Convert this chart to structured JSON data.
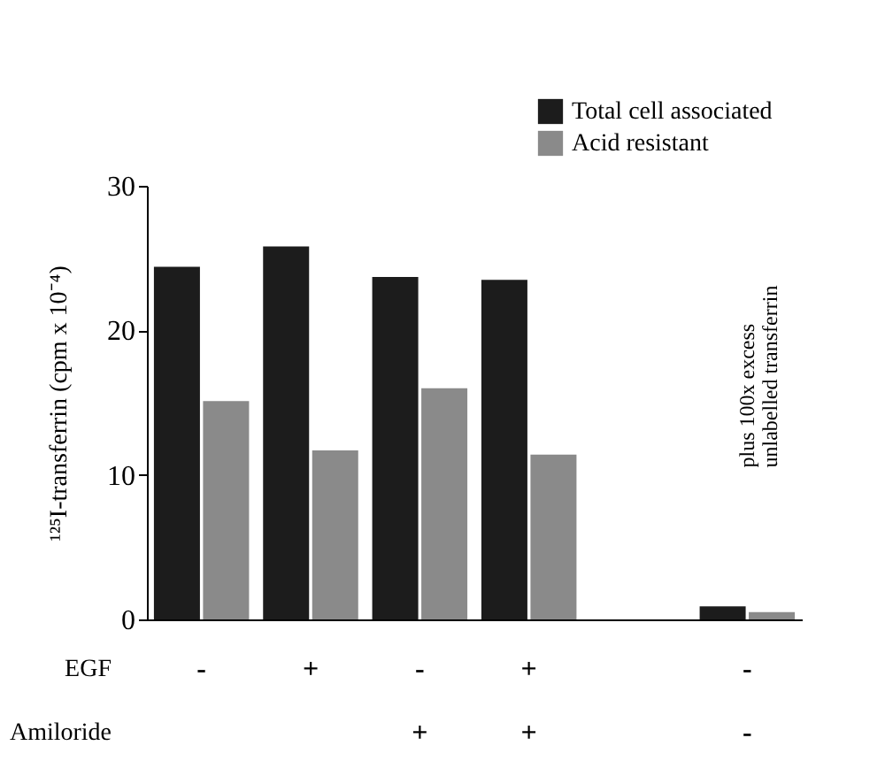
{
  "chart_data": {
    "type": "bar",
    "ylabel": "¹²⁵I-transferrin (cpm x 10⁻⁴)",
    "categories": [
      "-",
      "+",
      "-\n+",
      "+\n+",
      null,
      "-\n-"
    ],
    "series": [
      {
        "name": "Total cell associated",
        "color": "#1c1c1c",
        "values": [
          24.4,
          25.8,
          23.7,
          23.5,
          null,
          0.9
        ]
      },
      {
        "name": "Acid resistant",
        "color": "#8a8a8a",
        "values": [
          15.1,
          11.7,
          16.0,
          11.4,
          null,
          0.5
        ]
      }
    ],
    "ylim": [
      0,
      30
    ],
    "yticks": [
      0,
      10,
      20,
      30
    ],
    "grid": false,
    "legend": "top right",
    "annotations": [
      "EGF",
      "Amiloride",
      "plus 100x excess\nunlabelled transferrin"
    ]
  }
}
